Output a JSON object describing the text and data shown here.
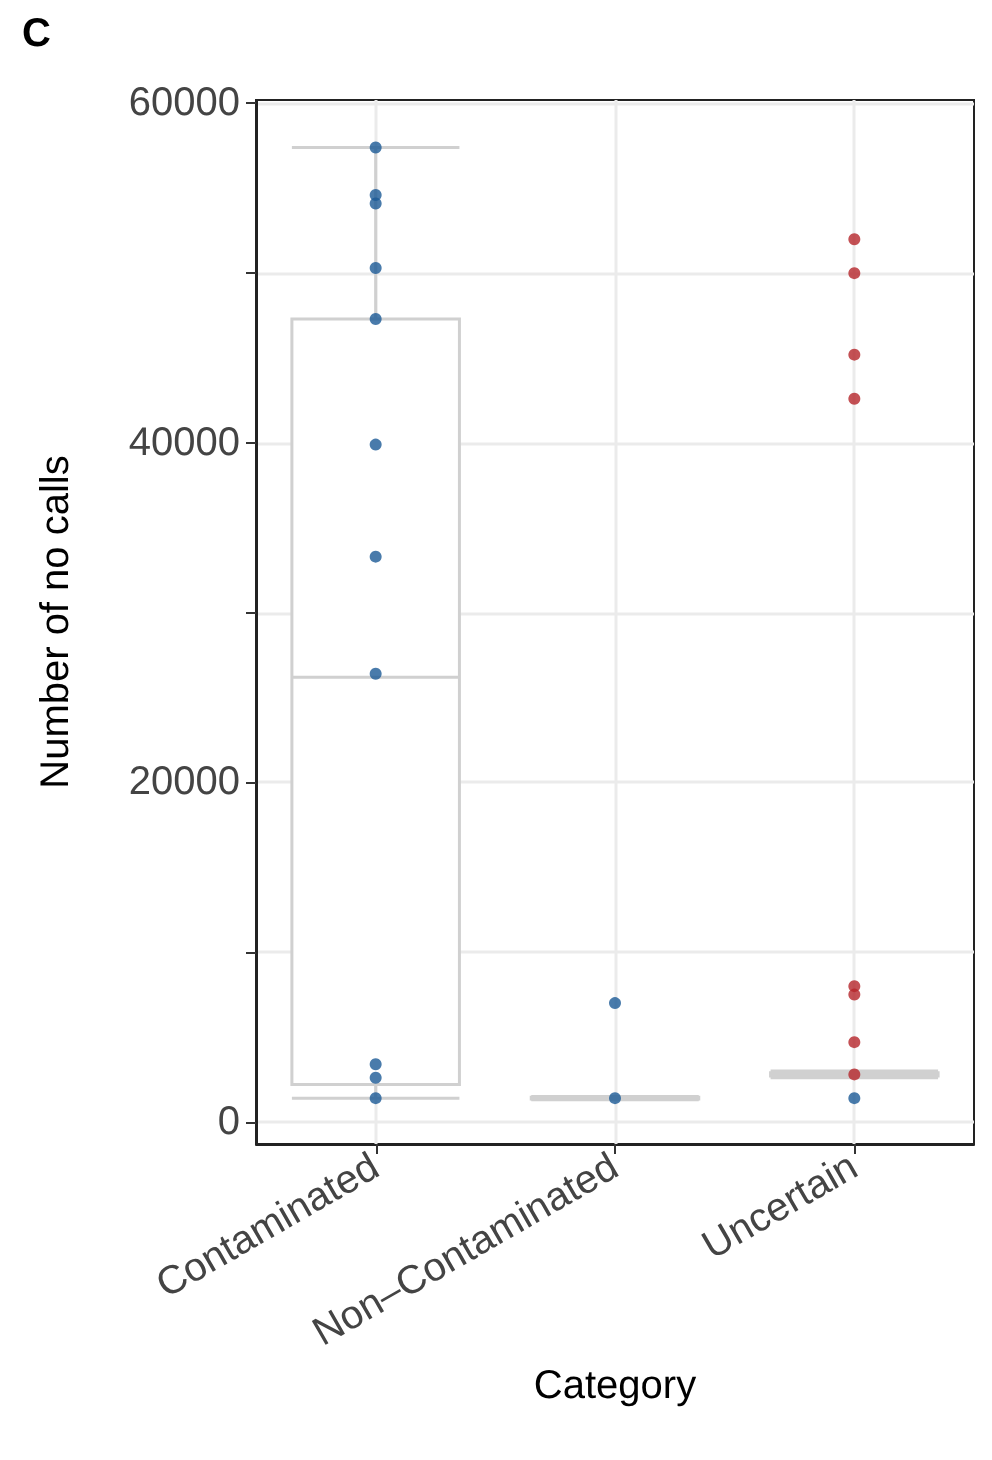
{
  "chart_data": {
    "type": "box",
    "title": "C",
    "xlabel": "Category",
    "ylabel": "Number of no calls",
    "categories": [
      "Contaminated",
      "Non–Contaminated",
      "Uncertain"
    ],
    "boxes": [
      {
        "low": 1400,
        "q1": 2200,
        "median": 26200,
        "q3": 47300,
        "high": 57400
      },
      {
        "low": 1300,
        "q1": 1350,
        "median": 1400,
        "q3": 1450,
        "high": 1500
      },
      {
        "low": 2600,
        "q1": 2700,
        "median": 2800,
        "q3": 2900,
        "high": 3000
      }
    ],
    "color": "#d0d0d0",
    "series": [
      {
        "type": "scatter",
        "color": "#1b5a96",
        "x": [
          "Contaminated",
          "Contaminated",
          "Contaminated",
          "Contaminated",
          "Contaminated",
          "Contaminated",
          "Contaminated",
          "Contaminated",
          "Contaminated",
          "Contaminated",
          "Contaminated",
          "Non–Contaminated",
          "Non–Contaminated",
          "Uncertain"
        ],
        "values": [
          57400,
          54600,
          54100,
          50300,
          47300,
          39900,
          33300,
          26400,
          3400,
          2600,
          1400,
          7000,
          1400,
          1400
        ]
      },
      {
        "type": "scatter",
        "color": "#b5252a",
        "x": [
          "Uncertain",
          "Uncertain",
          "Uncertain",
          "Uncertain",
          "Uncertain",
          "Uncertain",
          "Uncertain",
          "Uncertain"
        ],
        "values": [
          52000,
          50000,
          45200,
          42600,
          8000,
          7500,
          4700,
          2800
        ]
      }
    ],
    "ylim": [
      -1300,
      60200
    ],
    "yticks": [
      0,
      {
        "value": 10000,
        "label": null
      },
      20000,
      {
        "value": 30000,
        "label": null
      },
      40000,
      {
        "value": 50000,
        "label": null
      },
      60000
    ],
    "grid": true,
    "marker": "circle"
  }
}
